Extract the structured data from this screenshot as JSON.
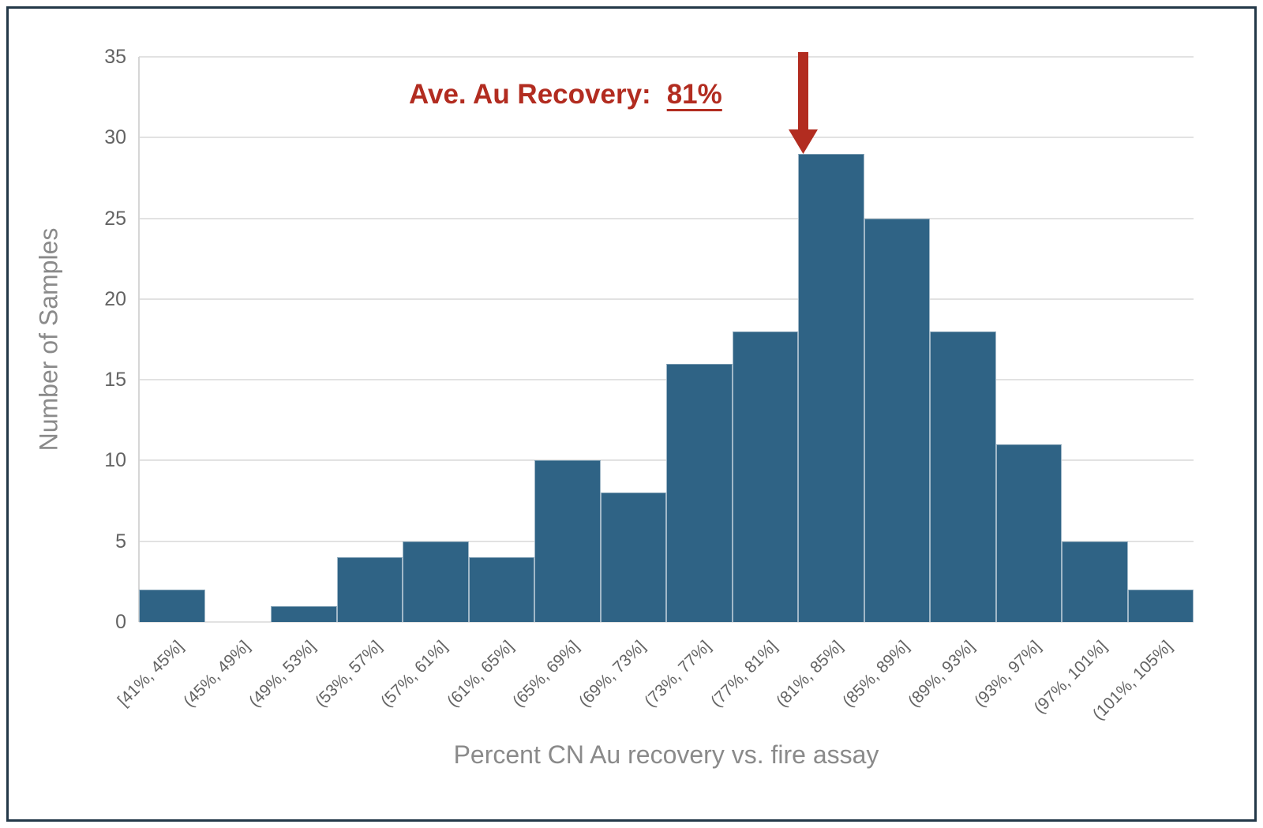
{
  "chart_data": {
    "type": "bar",
    "title": "",
    "categories": [
      "[41%, 45%]",
      "(45%, 49%]",
      "(49%, 53%]",
      "(53%, 57%]",
      "(57%, 61%]",
      "(61%, 65%]",
      "(65%, 69%]",
      "(69%, 73%]",
      "(73%, 77%]",
      "(77%, 81%]",
      "(81%, 85%]",
      "(85%, 89%]",
      "(89%, 93%]",
      "(93%, 97%]",
      "(97%, 101%]",
      "(101%, 105%]"
    ],
    "values": [
      2,
      0,
      1,
      4,
      5,
      4,
      10,
      8,
      16,
      18,
      29,
      25,
      18,
      11,
      5,
      2
    ],
    "xlabel": "Percent CN Au recovery vs. fire assay",
    "ylabel": "Number of Samples",
    "ylim": [
      0,
      35
    ],
    "y_ticks": [
      0,
      5,
      10,
      15,
      20,
      25,
      30,
      35
    ],
    "grid": true,
    "legend": false,
    "annotation": {
      "label": "Ave. Au Recovery:",
      "value": "81%",
      "arrow_points_to_category": "(81%, 85%]"
    }
  },
  "colors": {
    "bar": "#2F6385",
    "gridline": "#E2E2E2",
    "tick_text": "#636363",
    "axis_title_text": "#8A8A8A",
    "annotation_red": "#B22C20",
    "frame_border": "#233848"
  }
}
